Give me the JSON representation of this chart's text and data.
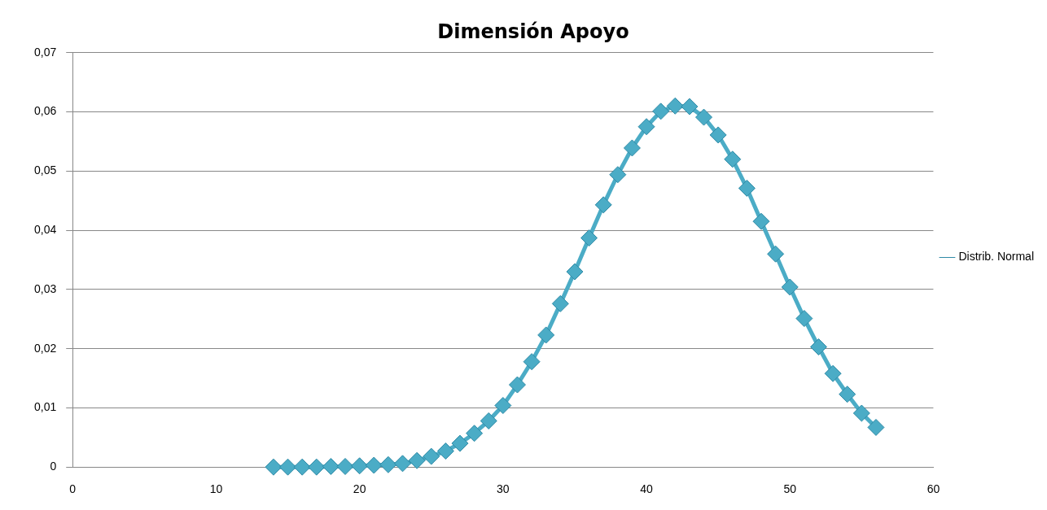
{
  "chart_data": {
    "type": "scatter",
    "title": "Dimensión Apoyo",
    "series": [
      {
        "name": "Distrib. Normal",
        "type": "line",
        "color": "#4bacc6",
        "x": [
          14,
          15,
          16,
          17,
          18,
          19,
          20,
          21,
          22,
          23,
          24,
          25,
          26,
          27,
          28,
          29,
          30,
          31,
          32,
          33,
          34,
          35,
          36,
          37,
          38,
          39,
          40,
          41,
          42,
          43,
          44,
          45,
          46,
          47,
          48,
          49,
          50,
          51,
          52,
          53,
          54,
          55,
          56
        ],
        "values": [
          0,
          0,
          0,
          0,
          0.0001,
          0.0001,
          0.0002,
          0.0003,
          0.0004,
          0.0006,
          0.0011,
          0.0018,
          0.0027,
          0.004,
          0.0057,
          0.0078,
          0.0104,
          0.0139,
          0.0178,
          0.0223,
          0.0276,
          0.033,
          0.0387,
          0.0443,
          0.0494,
          0.0539,
          0.0575,
          0.0601,
          0.061,
          0.0609,
          0.0591,
          0.0561,
          0.052,
          0.0471,
          0.0415,
          0.036,
          0.0304,
          0.0251,
          0.0203,
          0.0158,
          0.0123,
          0.0091,
          0.0067
        ]
      }
    ],
    "xlim": [
      0,
      60
    ],
    "xticks": [
      0,
      10,
      20,
      30,
      40,
      50,
      60
    ],
    "ylim": [
      0,
      0.07
    ],
    "yticks": [
      {
        "value": 0,
        "label": "0"
      },
      {
        "value": 0.01,
        "label": "0,01"
      },
      {
        "value": 0.02,
        "label": "0,02"
      },
      {
        "value": 0.03,
        "label": "0,03"
      },
      {
        "value": 0.04,
        "label": "0,04"
      },
      {
        "value": 0.05,
        "label": "0,05"
      },
      {
        "value": 0.06,
        "label": "0,06"
      },
      {
        "value": 0.07,
        "label": "0,07"
      }
    ],
    "grid": "y",
    "legend": "right",
    "marker": "diamond",
    "line_style": "solid"
  }
}
